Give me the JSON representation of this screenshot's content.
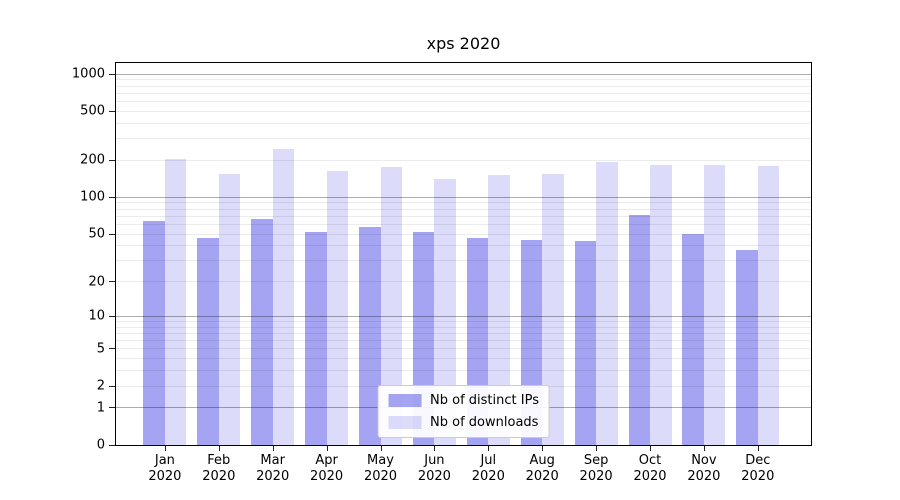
{
  "chart_data": {
    "type": "bar",
    "title": "xps 2020",
    "x": {
      "categories": [
        "Jan",
        "Feb",
        "Mar",
        "Apr",
        "May",
        "Jun",
        "Jul",
        "Aug",
        "Sep",
        "Oct",
        "Nov",
        "Dec"
      ],
      "year": "2020"
    },
    "y_axis": {
      "scale": "log1p",
      "max": 1234,
      "ticks": [
        1000,
        500,
        200,
        100,
        50,
        20,
        10,
        5,
        2,
        1,
        0
      ],
      "grid_major": [
        1,
        10,
        100,
        1000
      ],
      "grid_minor": [
        2,
        3,
        4,
        5,
        6,
        7,
        8,
        9,
        20,
        30,
        40,
        50,
        60,
        70,
        80,
        90,
        200,
        300,
        400,
        500,
        600,
        700,
        800,
        900
      ]
    },
    "series": [
      {
        "name": "Nb of distinct IPs",
        "color": "rgba(92,92,232,0.56)",
        "values": [
          64,
          46,
          67,
          52,
          57,
          52,
          46,
          45,
          44,
          72,
          50,
          37
        ]
      },
      {
        "name": "Nb of downloads",
        "color": "rgba(92,92,232,0.21)",
        "values": [
          205,
          155,
          248,
          164,
          178,
          142,
          151,
          155,
          196,
          185,
          185,
          181
        ]
      }
    ],
    "legend": {
      "position": "lower center"
    }
  }
}
